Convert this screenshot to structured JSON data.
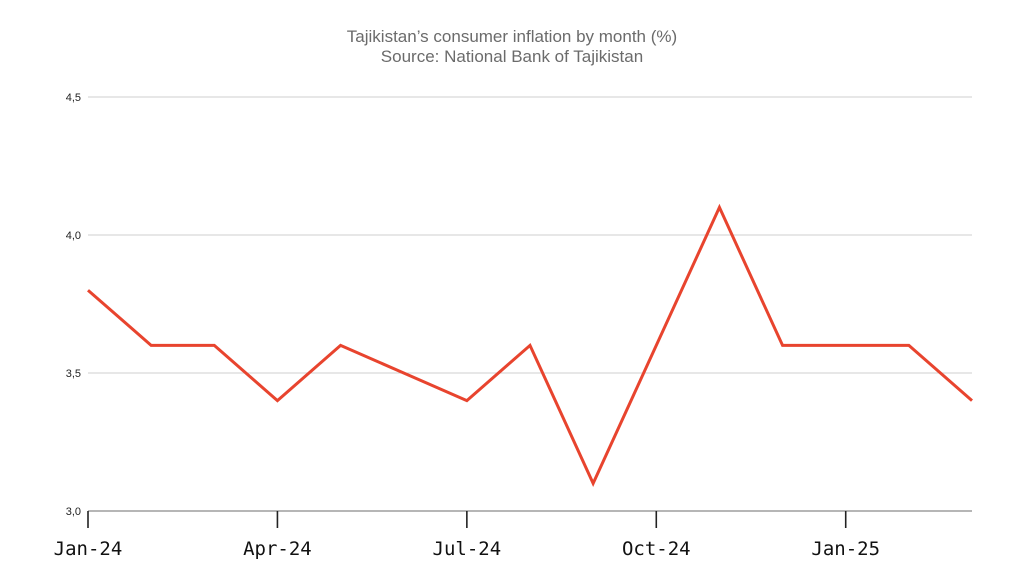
{
  "chart_data": {
    "type": "line",
    "title": "Tajikistan’s consumer inflation by month (%)",
    "subtitle": "Source: National Bank of Tajikistan",
    "xlabel": "",
    "ylabel": "",
    "ylim": [
      3.0,
      4.5
    ],
    "yticks": [
      "3,0",
      "3,5",
      "4,0",
      "4,5"
    ],
    "ytick_values": [
      3.0,
      3.5,
      4.0,
      4.5
    ],
    "x": [
      "2024-01",
      "2024-02",
      "2024-03",
      "2024-04",
      "2024-05",
      "2024-06",
      "2024-07",
      "2024-08",
      "2024-09",
      "2024-10",
      "2024-11",
      "2024-12",
      "2025-01",
      "2025-02",
      "2025-03"
    ],
    "xtick_labels": [
      "Jan-24",
      "Apr-24",
      "Jul-24",
      "Oct-24",
      "Jan-25"
    ],
    "xtick_months": [
      "2024-01",
      "2024-04",
      "2024-07",
      "2024-10",
      "2025-01"
    ],
    "series": [
      {
        "color": "#e8442e",
        "values": [
          3.8,
          3.6,
          3.6,
          3.4,
          3.6,
          3.5,
          3.4,
          3.6,
          3.1,
          3.6,
          4.1,
          3.6,
          3.6,
          3.6,
          3.4
        ]
      }
    ],
    "grid": true,
    "legend": "none"
  }
}
